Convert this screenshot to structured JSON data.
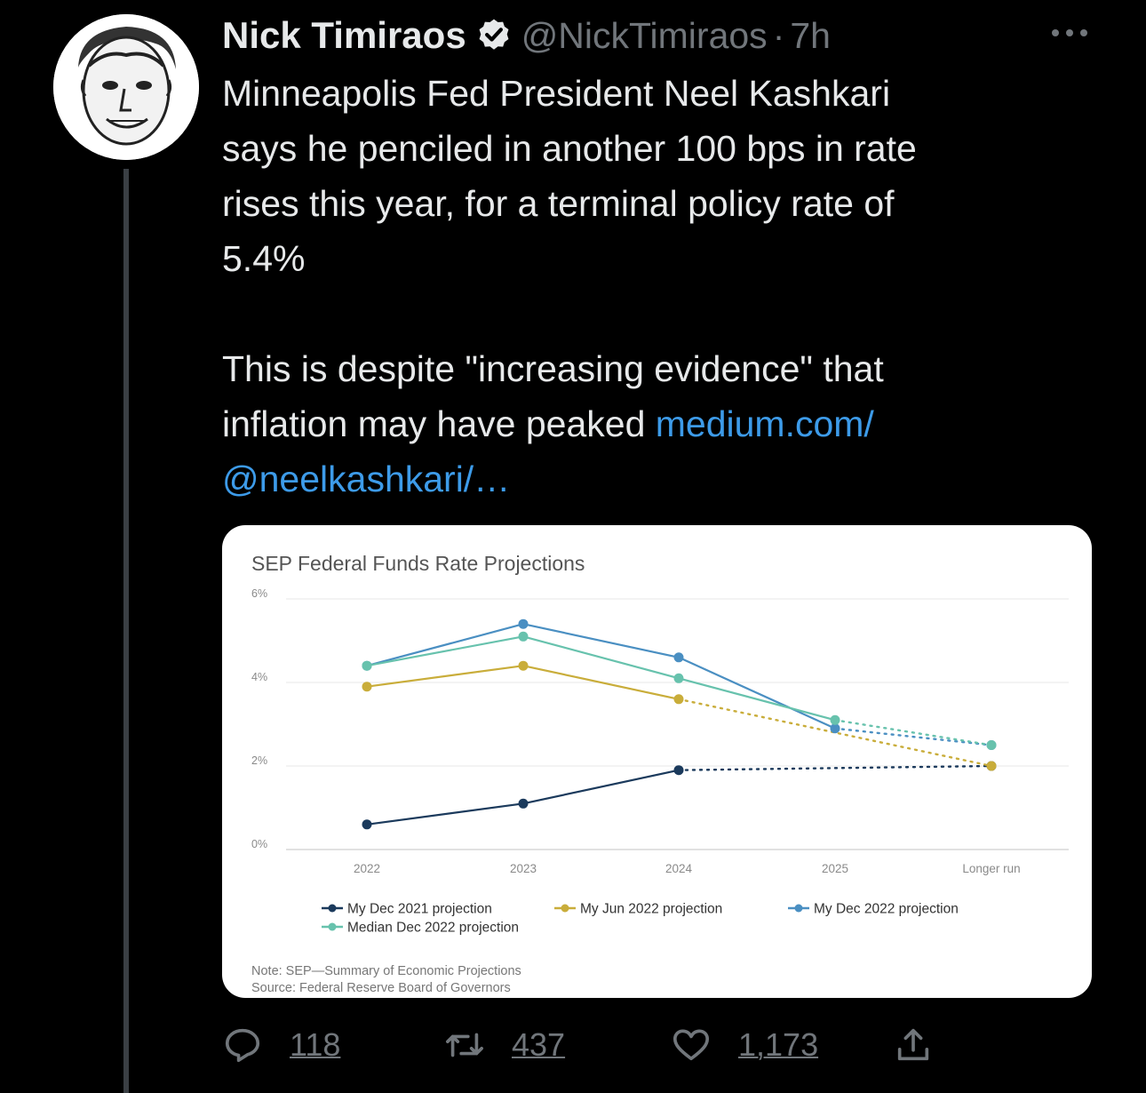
{
  "tweet": {
    "author_name": "Nick Timiraos",
    "handle": "@NickTimiraos",
    "separator": "·",
    "time": "7h",
    "text_lines": [
      "Minneapolis Fed President Neel Kashkari",
      "says he penciled in another 100 bps in rate",
      "rises this year, for a terminal policy rate of",
      "5.4%"
    ],
    "text2_line1": "This is despite \"increasing evidence\" that",
    "text2_line2_prefix": "inflation may have peaked ",
    "link_part1": "medium.com/",
    "link_part2": "@neelkashkari/…"
  },
  "actions": {
    "replies": "118",
    "retweets": "437",
    "likes": "1,173"
  },
  "colors": {
    "link": "#3d9be9",
    "muted": "#71767b",
    "series_dec2021": "#1b3a5c",
    "series_jun2022": "#c9ad3a",
    "series_dec2022": "#4a8fc2",
    "series_median": "#67c2ad"
  },
  "chart_data": {
    "type": "line",
    "title": "SEP Federal Funds Rate Projections",
    "categories": [
      "2022",
      "2023",
      "2024",
      "2025",
      "Longer run"
    ],
    "y_tick_labels": [
      "0%",
      "2%",
      "4%",
      "6%"
    ],
    "ylim": [
      0,
      6
    ],
    "grid": true,
    "legend_position": "bottom",
    "series": [
      {
        "name": "My Dec 2021 projection",
        "color": "#1b3a5c",
        "values": [
          0.6,
          1.1,
          1.9,
          null,
          2.0
        ],
        "dotted_to_last": true
      },
      {
        "name": "My Jun 2022 projection",
        "color": "#c9ad3a",
        "values": [
          3.9,
          4.4,
          3.6,
          null,
          2.0
        ],
        "dotted_to_last": true
      },
      {
        "name": "My Dec 2022 projection",
        "color": "#4a8fc2",
        "values": [
          4.4,
          5.4,
          4.6,
          2.9,
          2.5
        ],
        "dotted_from_index": 3
      },
      {
        "name": "Median Dec 2022 projection",
        "color": "#67c2ad",
        "values": [
          4.4,
          5.1,
          4.1,
          3.1,
          2.5
        ],
        "dotted_from_index": 3
      }
    ],
    "note": "Note: SEP—Summary of Economic Projections",
    "source": "Source: Federal Reserve Board of Governors"
  }
}
